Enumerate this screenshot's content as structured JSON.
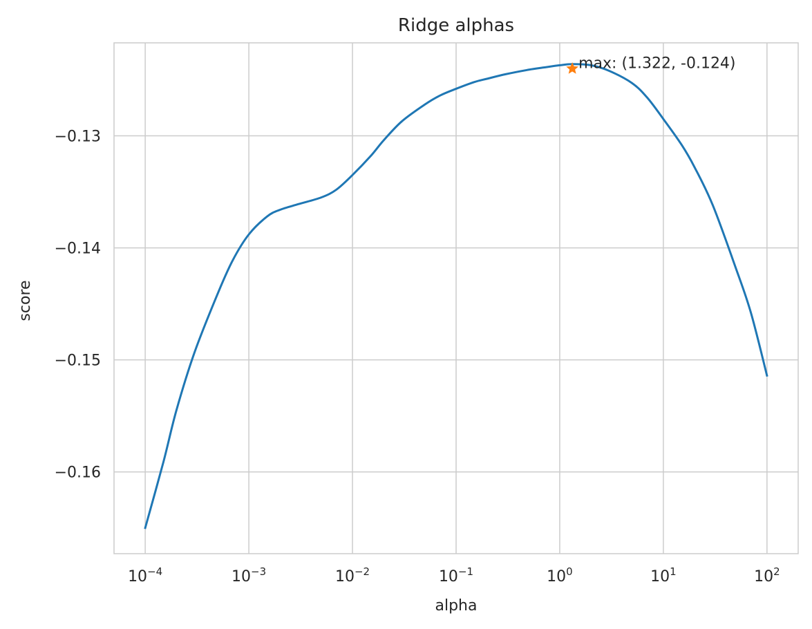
{
  "chart_data": {
    "type": "line",
    "title": "Ridge alphas",
    "xlabel": "alpha",
    "ylabel": "score",
    "xscale": "log",
    "grid": true,
    "x_ticks": [
      {
        "value": 0.0001,
        "base": "10",
        "exp": "−4"
      },
      {
        "value": 0.001,
        "base": "10",
        "exp": "−3"
      },
      {
        "value": 0.01,
        "base": "10",
        "exp": "−2"
      },
      {
        "value": 0.1,
        "base": "10",
        "exp": "−1"
      },
      {
        "value": 1,
        "base": "10",
        "exp": "0"
      },
      {
        "value": 10,
        "base": "10",
        "exp": "1"
      },
      {
        "value": 100,
        "base": "10",
        "exp": "2"
      }
    ],
    "y_ticks": [
      {
        "value": -0.13,
        "label": "−0.13"
      },
      {
        "value": -0.14,
        "label": "−0.14"
      },
      {
        "value": -0.15,
        "label": "−0.15"
      },
      {
        "value": -0.16,
        "label": "−0.16"
      }
    ],
    "xlim": [
      5e-05,
      200
    ],
    "ylim": [
      -0.1673,
      -0.1217
    ],
    "series": [
      {
        "color": "#1f77b4",
        "x": [
          0.0001,
          0.00015,
          0.0002,
          0.0003,
          0.0005,
          0.0007,
          0.001,
          0.0015,
          0.002,
          0.003,
          0.005,
          0.007,
          0.01,
          0.015,
          0.02,
          0.03,
          0.05,
          0.07,
          0.1,
          0.15,
          0.2,
          0.3,
          0.5,
          0.7,
          1,
          1.322,
          2,
          3,
          5,
          7,
          10,
          15,
          20,
          30,
          50,
          70,
          100
        ],
        "y": [
          -0.165,
          -0.1591,
          -0.1545,
          -0.1493,
          -0.1441,
          -0.1411,
          -0.1388,
          -0.1372,
          -0.1366,
          -0.1361,
          -0.1355,
          -0.1348,
          -0.1335,
          -0.1318,
          -0.1304,
          -0.1287,
          -0.1272,
          -0.1264,
          -0.1258,
          -0.1252,
          -0.1249,
          -0.1245,
          -0.1241,
          -0.1239,
          -0.1237,
          -0.1236,
          -0.1237,
          -0.1242,
          -0.1253,
          -0.1266,
          -0.1285,
          -0.1308,
          -0.1328,
          -0.1362,
          -0.1418,
          -0.1458,
          -0.1514
        ]
      }
    ],
    "max_point": {
      "x": 1.322,
      "y": -0.124,
      "color": "#ff7f0e",
      "label": "max: (1.322, -0.124)"
    }
  }
}
